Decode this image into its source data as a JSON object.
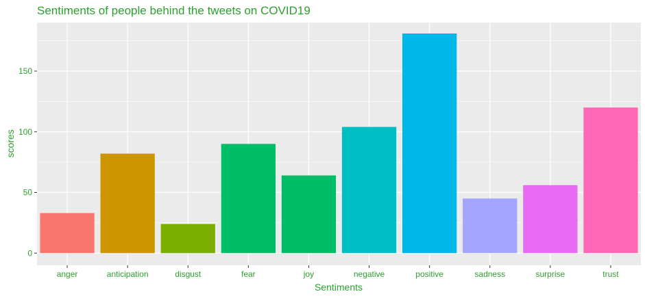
{
  "chart_data": {
    "type": "bar",
    "title": "Sentiments of people behind the tweets on COVID19",
    "xlabel": "Sentiments",
    "ylabel": "scores",
    "categories": [
      "anger",
      "anticipation",
      "disgust",
      "fear",
      "joy",
      "negative",
      "positive",
      "sadness",
      "surprise",
      "trust"
    ],
    "values": [
      33,
      82,
      24,
      90,
      64,
      104,
      181,
      45,
      56,
      120
    ],
    "colors": [
      "#F8766D",
      "#CD9600",
      "#7CAE00",
      "#00BE67",
      "#00BE67",
      "#00BFC4",
      "#00B8E7",
      "#A3A5FF",
      "#E76BF3",
      "#FF68B6"
    ],
    "yticks": [
      0,
      50,
      100,
      150
    ],
    "ylim": [
      -10,
      190
    ],
    "grid": true,
    "legend": "none",
    "text_color": "#2ca02c",
    "panel_color": "#EBEBEB"
  }
}
